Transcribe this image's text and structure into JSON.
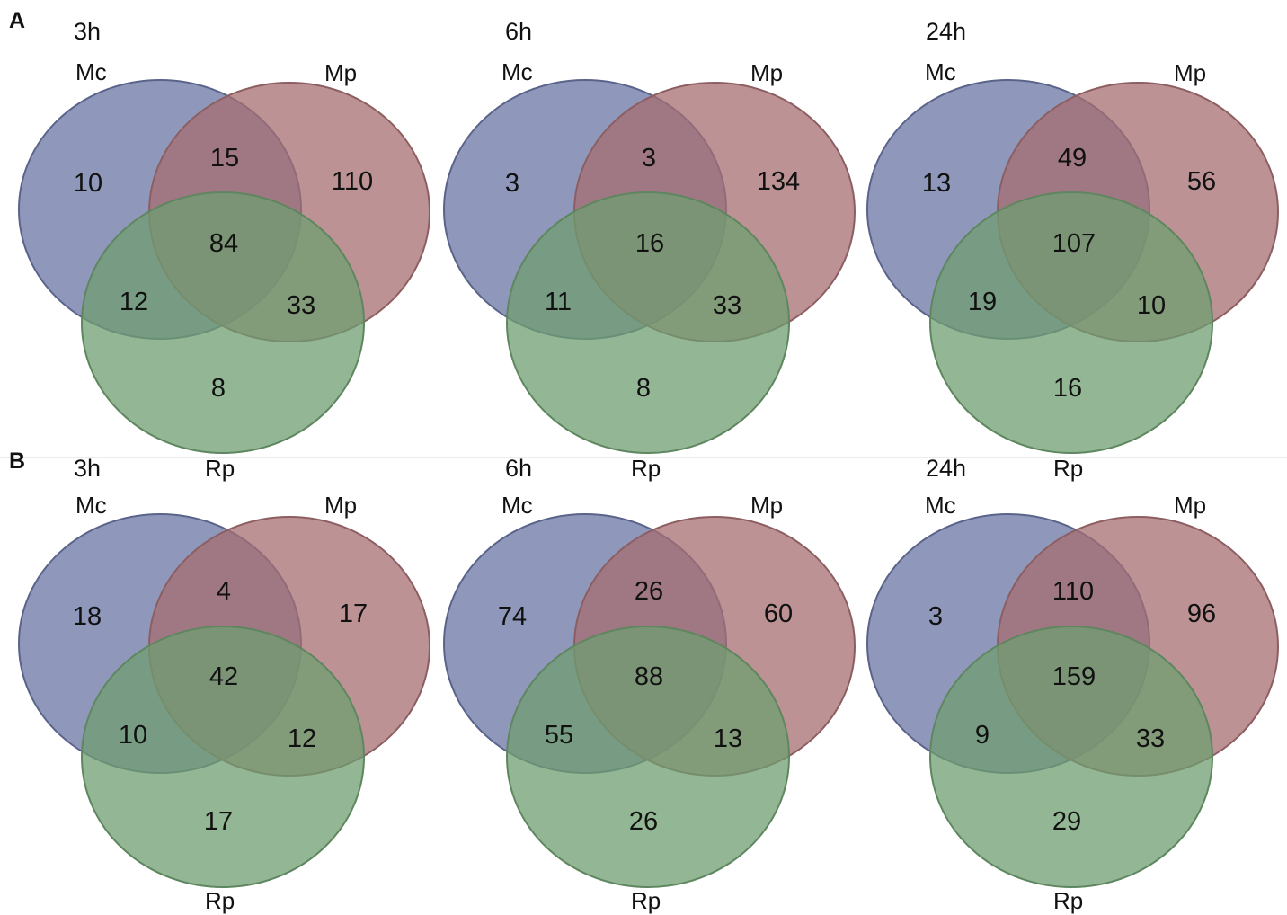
{
  "colors": {
    "set_a": "#6a76a3",
    "set_b": "#a66e72",
    "set_c": "#6f9e70"
  },
  "panels": [
    {
      "letter": "A",
      "set_labels": {
        "a": "Mc",
        "b": "Mp",
        "c": "Rp"
      },
      "venns": [
        {
          "time": "3h",
          "counts": {
            "a_only": "10",
            "ab": "15",
            "b_only": "110",
            "abc": "84",
            "ac": "12",
            "bc": "33",
            "c_only": "8"
          }
        },
        {
          "time": "6h",
          "counts": {
            "a_only": "3",
            "ab": "3",
            "b_only": "134",
            "abc": "16",
            "ac": "11",
            "bc": "33",
            "c_only": "8"
          }
        },
        {
          "time": "24h",
          "counts": {
            "a_only": "13",
            "ab": "49",
            "b_only": "56",
            "abc": "107",
            "ac": "19",
            "bc": "10",
            "c_only": "16"
          }
        }
      ]
    },
    {
      "letter": "B",
      "set_labels": {
        "a": "Mc",
        "b": "Mp",
        "c": "Rp"
      },
      "venns": [
        {
          "time": "3h",
          "counts": {
            "a_only": "18",
            "ab": "4",
            "b_only": "17",
            "abc": "42",
            "ac": "10",
            "bc": "12",
            "c_only": "17"
          }
        },
        {
          "time": "6h",
          "counts": {
            "a_only": "74",
            "ab": "26",
            "b_only": "60",
            "abc": "88",
            "ac": "55",
            "bc": "13",
            "c_only": "26"
          }
        },
        {
          "time": "24h",
          "counts": {
            "a_only": "3",
            "ab": "110",
            "b_only": "96",
            "abc": "159",
            "ac": "9",
            "bc": "33",
            "c_only": "29"
          }
        }
      ]
    }
  ]
}
